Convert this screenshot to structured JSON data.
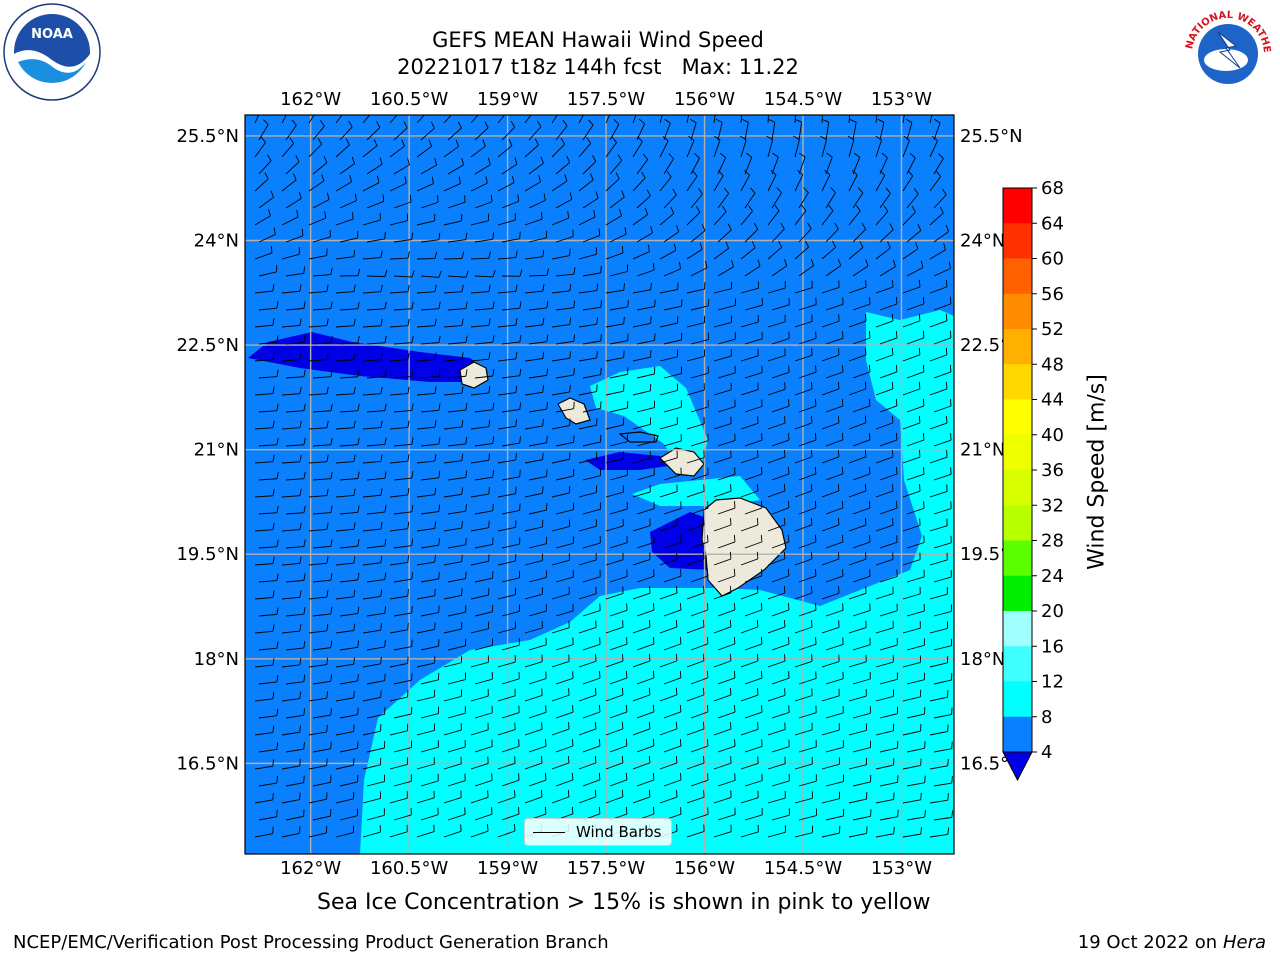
{
  "header": {
    "title_line1": "GEFS MEAN Hawaii Wind Speed",
    "title_line2": "20221017 t18z 144h fcst   Max: 11.22"
  },
  "logos": {
    "left": "noaa-logo",
    "left_text": "NOAA",
    "right": "nws-logo",
    "right_text": "NATIONAL WEATHER SERVICE"
  },
  "map": {
    "lon_labels": [
      "162°W",
      "160.5°W",
      "159°W",
      "157.5°W",
      "156°W",
      "154.5°W",
      "153°W"
    ],
    "lat_labels": [
      "25.5°N",
      "24°N",
      "22.5°N",
      "21°N",
      "19.5°N",
      "18°N",
      "16.5°N"
    ],
    "lon_range": [
      -163.0,
      -152.2
    ],
    "lat_range": [
      15.2,
      25.8
    ],
    "grid": true,
    "colors": {
      "ocean": "#0a80ff",
      "land": "#eeeadb",
      "calm": "#0000e6",
      "moderate": "#00ffff",
      "coast": "#000000"
    },
    "legend_label": "Wind Barbs"
  },
  "colorbar": {
    "label": "Wind Speed [m/s]",
    "ticks": [
      "68",
      "64",
      "60",
      "56",
      "52",
      "48",
      "44",
      "40",
      "36",
      "32",
      "28",
      "24",
      "20",
      "16",
      "12",
      "8",
      "4"
    ],
    "colors": [
      "#ff0000",
      "#ff3000",
      "#ff6000",
      "#ff8c00",
      "#ffb000",
      "#ffd800",
      "#ffff00",
      "#eeff00",
      "#d8ff00",
      "#b8ff00",
      "#5cff00",
      "#00ee00",
      "#00e060",
      "#50ff80",
      "#a0ffff",
      "#40ffff",
      "#00ffff",
      "#0a80ff"
    ],
    "under_color": "#0000e6"
  },
  "footer": {
    "subtitle": "Sea Ice Concentration > 15% is shown in pink to yellow",
    "left": "NCEP/EMC/Verification Post Processing Product Generation Branch",
    "date": "19 Oct 2022 on ",
    "machine": "Hera"
  }
}
